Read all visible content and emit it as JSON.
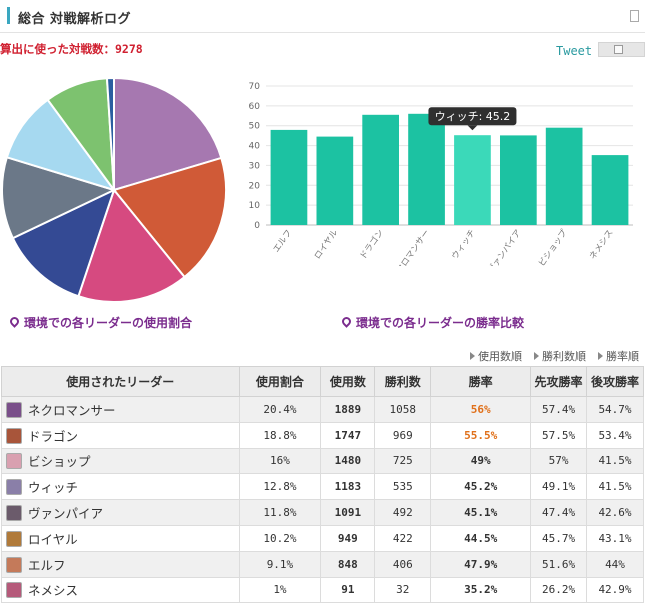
{
  "header": {
    "title": "総合 対戦解析ログ"
  },
  "summary": {
    "battle_count_text": "算出に使った対戦数：9278"
  },
  "actions": {
    "tweet_label": "Tweet",
    "save_icon": "save-icon"
  },
  "captions": {
    "pie": "環境での各リーダーの使用割合",
    "bar": "環境での各リーダーの勝率比較"
  },
  "sort_options": [
    "使用数順",
    "勝利数順",
    "勝率順"
  ],
  "table": {
    "headers": [
      "使用されたリーダー",
      "使用割合",
      "使用数",
      "勝利数",
      "勝率",
      "先攻勝率",
      "後攻勝率"
    ],
    "rows": [
      {
        "leader": "ネクロマンサー",
        "share": "20.4%",
        "uses": "1889",
        "wins": "1058",
        "winrate": "56%",
        "first": "57.4%",
        "second": "54.7%",
        "hot": true,
        "avatar": "#7a4f8a"
      },
      {
        "leader": "ドラゴン",
        "share": "18.8%",
        "uses": "1747",
        "wins": "969",
        "winrate": "55.5%",
        "first": "57.5%",
        "second": "53.4%",
        "hot": true,
        "avatar": "#a8553a"
      },
      {
        "leader": "ビショップ",
        "share": "16%",
        "uses": "1480",
        "wins": "725",
        "winrate": "49%",
        "first": "57%",
        "second": "41.5%",
        "hot": false,
        "avatar": "#d9a0b0"
      },
      {
        "leader": "ウィッチ",
        "share": "12.8%",
        "uses": "1183",
        "wins": "535",
        "winrate": "45.2%",
        "first": "49.1%",
        "second": "41.5%",
        "hot": false,
        "avatar": "#8a7fa8"
      },
      {
        "leader": "ヴァンパイア",
        "share": "11.8%",
        "uses": "1091",
        "wins": "492",
        "winrate": "45.1%",
        "first": "47.4%",
        "second": "42.6%",
        "hot": false,
        "avatar": "#6b5b6b"
      },
      {
        "leader": "ロイヤル",
        "share": "10.2%",
        "uses": "949",
        "wins": "422",
        "winrate": "44.5%",
        "first": "45.7%",
        "second": "43.1%",
        "hot": false,
        "avatar": "#b07a3a"
      },
      {
        "leader": "エルフ",
        "share": "9.1%",
        "uses": "848",
        "wins": "406",
        "winrate": "47.9%",
        "first": "51.6%",
        "second": "44%",
        "hot": false,
        "avatar": "#c47a5a"
      },
      {
        "leader": "ネメシス",
        "share": "1%",
        "uses": "91",
        "wins": "32",
        "winrate": "35.2%",
        "first": "26.2%",
        "second": "42.9%",
        "hot": false,
        "avatar": "#b55a7a"
      }
    ]
  },
  "chart_data": [
    {
      "type": "pie",
      "values": [
        20.4,
        18.8,
        16,
        12.8,
        11.8,
        10.2,
        9.1,
        1
      ],
      "colors": [
        "#a678b0",
        "#d05a37",
        "#d64a80",
        "#344a94",
        "#6b7888",
        "#a6d9f0",
        "#7dc26f",
        "#2a5ea0"
      ]
    },
    {
      "type": "bar",
      "categories": [
        "エルフ",
        "ロイヤル",
        "ドラゴン",
        "ネクロマンサー",
        "ウィッチ",
        "ヴァンパイア",
        "ビショップ",
        "ネメシス"
      ],
      "values": [
        47.9,
        44.5,
        55.5,
        56,
        45.2,
        45.1,
        49,
        35.2
      ],
      "ylim": [
        0,
        70
      ],
      "yticks": [
        0,
        10,
        20,
        30,
        40,
        50,
        60,
        70
      ],
      "grid": true,
      "bar_color": "#1cc2a2",
      "highlight_color": "#3bd9b9",
      "tooltip": {
        "category_index": 4,
        "text": "ウィッチ: 45.2"
      }
    }
  ]
}
